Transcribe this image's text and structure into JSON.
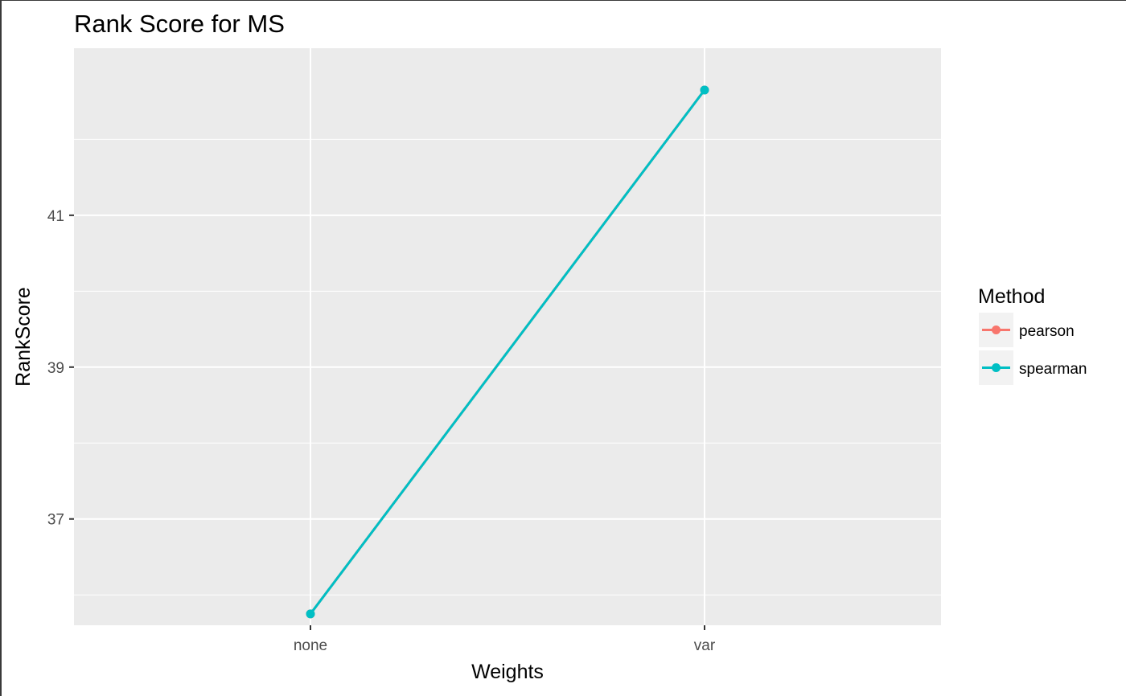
{
  "chart_data": {
    "type": "line",
    "title": "Rank Score for MS",
    "xlabel": "Weights",
    "ylabel": "RankScore",
    "categories": [
      "none",
      "var"
    ],
    "ylim": [
      35.6,
      43.2
    ],
    "yticks": [
      37,
      39,
      41
    ],
    "y_minor_gridlines": [
      36,
      38,
      40,
      42
    ],
    "grid": true,
    "legend": {
      "title": "Method",
      "placement": "right"
    },
    "series": [
      {
        "name": "pearson",
        "color": "#F8766D",
        "values": [
          35.75,
          42.65
        ]
      },
      {
        "name": "spearman",
        "color": "#00BFC4",
        "values": [
          35.75,
          42.65
        ]
      }
    ],
    "panel_background": "#EBEBEB",
    "gridline_color": "#FFFFFF"
  }
}
